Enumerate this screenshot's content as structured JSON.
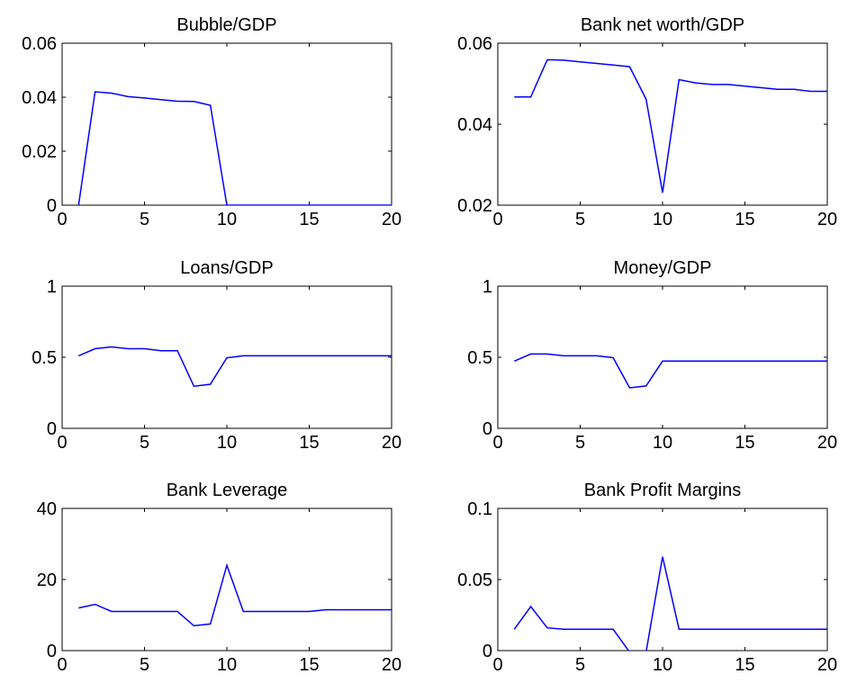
{
  "chart_data": [
    {
      "type": "line",
      "title": "Bubble/GDP",
      "xlim": [
        0,
        20
      ],
      "ylim": [
        0,
        0.06
      ],
      "xticks": [
        "0",
        "5",
        "10",
        "15",
        "20"
      ],
      "yticks": [
        "0",
        "0.02",
        "0.04",
        "0.06"
      ],
      "grid": false,
      "series": [
        {
          "color": "#0000ff",
          "x": [
            1,
            2,
            3,
            4,
            5,
            6,
            7,
            8,
            9,
            10,
            11,
            12,
            13,
            14,
            15,
            16,
            17,
            18,
            19,
            20
          ],
          "y": [
            0,
            0.042,
            0.0415,
            0.0402,
            0.0397,
            0.0391,
            0.0385,
            0.0384,
            0.037,
            0,
            0,
            0,
            0,
            0,
            0,
            0,
            0,
            0,
            0,
            0
          ]
        }
      ]
    },
    {
      "type": "line",
      "title": "Bank net worth/GDP",
      "xlim": [
        0,
        20
      ],
      "ylim": [
        0.02,
        0.06
      ],
      "xticks": [
        "0",
        "5",
        "10",
        "15",
        "20"
      ],
      "yticks": [
        "0.02",
        "0.04",
        "0.06"
      ],
      "grid": false,
      "series": [
        {
          "color": "#0000ff",
          "x": [
            1,
            2,
            3,
            4,
            5,
            6,
            7,
            8,
            9,
            10,
            11,
            12,
            13,
            14,
            15,
            16,
            17,
            18,
            19,
            20
          ],
          "y": [
            0.0467,
            0.0467,
            0.0559,
            0.0558,
            0.0554,
            0.055,
            0.0546,
            0.0542,
            0.0462,
            0.0231,
            0.051,
            0.0502,
            0.0498,
            0.0498,
            0.0494,
            0.049,
            0.0486,
            0.0486,
            0.0481,
            0.0481
          ]
        }
      ]
    },
    {
      "type": "line",
      "title": "Loans/GDP",
      "xlim": [
        0,
        20
      ],
      "ylim": [
        0,
        1
      ],
      "xticks": [
        "0",
        "5",
        "10",
        "15",
        "20"
      ],
      "yticks": [
        "0",
        "0.5",
        "1"
      ],
      "grid": false,
      "series": [
        {
          "color": "#0000ff",
          "x": [
            1,
            2,
            3,
            4,
            5,
            6,
            7,
            8,
            9,
            10,
            11,
            12,
            13,
            14,
            15,
            16,
            17,
            18,
            19,
            20
          ],
          "y": [
            0.51,
            0.56,
            0.573,
            0.56,
            0.56,
            0.546,
            0.546,
            0.296,
            0.31,
            0.496,
            0.51,
            0.51,
            0.51,
            0.51,
            0.51,
            0.51,
            0.51,
            0.51,
            0.51,
            0.51
          ]
        }
      ]
    },
    {
      "type": "line",
      "title": "Money/GDP",
      "xlim": [
        0,
        20
      ],
      "ylim": [
        0,
        1
      ],
      "xticks": [
        "0",
        "5",
        "10",
        "15",
        "20"
      ],
      "yticks": [
        "0",
        "0.5",
        "1"
      ],
      "grid": false,
      "series": [
        {
          "color": "#0000ff",
          "x": [
            1,
            2,
            3,
            4,
            5,
            6,
            7,
            8,
            9,
            10,
            11,
            12,
            13,
            14,
            15,
            16,
            17,
            18,
            19,
            20
          ],
          "y": [
            0.473,
            0.523,
            0.523,
            0.51,
            0.51,
            0.51,
            0.497,
            0.285,
            0.298,
            0.473,
            0.473,
            0.473,
            0.473,
            0.473,
            0.473,
            0.473,
            0.473,
            0.473,
            0.473,
            0.473
          ]
        }
      ]
    },
    {
      "type": "line",
      "title": "Bank Leverage",
      "xlim": [
        0,
        20
      ],
      "ylim": [
        0,
        40
      ],
      "xticks": [
        "0",
        "5",
        "10",
        "15",
        "20"
      ],
      "yticks": [
        "0",
        "20",
        "40"
      ],
      "grid": false,
      "series": [
        {
          "color": "#0000ff",
          "x": [
            1,
            2,
            3,
            4,
            5,
            6,
            7,
            8,
            9,
            10,
            11,
            12,
            13,
            14,
            15,
            16,
            17,
            18,
            19,
            20
          ],
          "y": [
            12,
            13,
            11,
            11,
            11,
            11,
            11,
            7,
            7.5,
            24,
            11,
            11,
            11,
            11,
            11,
            11.5,
            11.5,
            11.5,
            11.5,
            11.5
          ]
        }
      ]
    },
    {
      "type": "line",
      "title": "Bank Profit Margins",
      "xlim": [
        0,
        20
      ],
      "ylim": [
        0,
        0.1
      ],
      "xticks": [
        "0",
        "5",
        "10",
        "15",
        "20"
      ],
      "yticks": [
        "0",
        "0.05",
        "0.1"
      ],
      "grid": false,
      "series": [
        {
          "color": "#0000ff",
          "x": [
            1,
            2,
            3,
            4,
            5,
            6,
            7,
            8,
            9,
            10,
            11,
            12,
            13,
            14,
            15,
            16,
            17,
            18,
            19,
            20
          ],
          "y": [
            0.015,
            0.031,
            0.016,
            0.015,
            0.015,
            0.015,
            0.015,
            -0.001,
            -0.001,
            0.066,
            0.015,
            0.015,
            0.015,
            0.015,
            0.015,
            0.015,
            0.015,
            0.015,
            0.015,
            0.015
          ]
        }
      ]
    }
  ]
}
